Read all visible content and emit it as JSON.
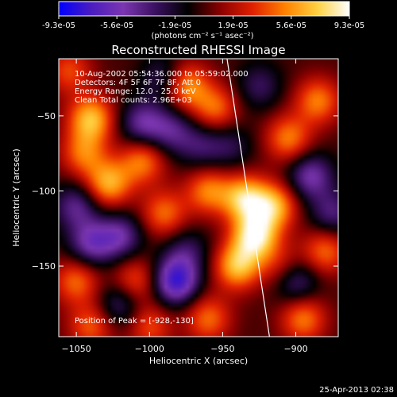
{
  "colorbar": {
    "tick_labels": [
      "-9.3e-05",
      "-5.6e-05",
      "-1.9e-05",
      "1.9e-05",
      "5.6e-05",
      "9.3e-05"
    ],
    "unit_label": "(photons cm⁻² s⁻¹ asec⁻²)",
    "colors": [
      "#0000ff",
      "#4a1cc0",
      "#7b36b0",
      "#3a1060",
      "#000000",
      "#8a0000",
      "#e02000",
      "#ff8000",
      "#ffd040",
      "#ffffff"
    ]
  },
  "chart_data": {
    "type": "heatmap",
    "title": "Reconstructed RHESSI Image",
    "xlabel": "Heliocentric X (arcsec)",
    "ylabel": "Heliocentric Y (arcsec)",
    "xlim": [
      -1062,
      -871
    ],
    "ylim": [
      -197,
      -12
    ],
    "x_ticks": [
      -1050,
      -1000,
      -950,
      -900
    ],
    "y_ticks": [
      -50,
      -100,
      -150
    ],
    "annotations": [
      "10-Aug-2002 05:54:36.000 to 05:59:02.000",
      "Detectors: 4F 5F 6F 7F 8F, Att 0",
      "Energy Range: 12.0 - 25.0 keV",
      "Clean     Total counts: 2.96E+03"
    ],
    "peak_label": "Position of Peak = [-928,-130]",
    "peak": [
      -928,
      -130
    ],
    "limb_line": [
      [
        -947,
        -12
      ],
      [
        -918,
        -197
      ]
    ],
    "blobs": [
      {
        "x": -1040,
        "y": -52,
        "v": 0.8
      },
      {
        "x": -1045,
        "y": -75,
        "v": 0.55
      },
      {
        "x": -1028,
        "y": -95,
        "v": 0.75
      },
      {
        "x": -1005,
        "y": -80,
        "v": 0.6
      },
      {
        "x": -975,
        "y": -30,
        "v": 0.7
      },
      {
        "x": -955,
        "y": -45,
        "v": 0.55
      },
      {
        "x": -990,
        "y": -115,
        "v": 0.55
      },
      {
        "x": -960,
        "y": -100,
        "v": 0.6
      },
      {
        "x": -935,
        "y": -105,
        "v": 0.85
      },
      {
        "x": -915,
        "y": -110,
        "v": 0.75
      },
      {
        "x": -928,
        "y": -130,
        "v": 1.0
      },
      {
        "x": -940,
        "y": -150,
        "v": 0.8
      },
      {
        "x": -905,
        "y": -65,
        "v": 0.6
      },
      {
        "x": -885,
        "y": -40,
        "v": 0.6
      },
      {
        "x": -880,
        "y": -140,
        "v": 0.55
      },
      {
        "x": -895,
        "y": -185,
        "v": 0.6
      },
      {
        "x": -1050,
        "y": -160,
        "v": 0.55
      },
      {
        "x": -1040,
        "y": -190,
        "v": 0.5
      },
      {
        "x": -1010,
        "y": -160,
        "v": 0.5
      },
      {
        "x": -1000,
        "y": -190,
        "v": 0.45
      },
      {
        "x": -960,
        "y": -185,
        "v": 0.55
      },
      {
        "x": -1055,
        "y": -20,
        "v": 0.45
      },
      {
        "x": -1050,
        "y": -110,
        "v": -0.5
      },
      {
        "x": -1005,
        "y": -55,
        "v": -0.55
      },
      {
        "x": -985,
        "y": -60,
        "v": -0.45
      },
      {
        "x": -1020,
        "y": -130,
        "v": -0.55
      },
      {
        "x": -982,
        "y": -160,
        "v": -0.9
      },
      {
        "x": -1040,
        "y": -135,
        "v": -0.6
      },
      {
        "x": -890,
        "y": -90,
        "v": -0.6
      },
      {
        "x": -900,
        "y": -160,
        "v": -0.5
      },
      {
        "x": -875,
        "y": -115,
        "v": -0.45
      },
      {
        "x": -990,
        "y": -25,
        "v": -0.4
      },
      {
        "x": -965,
        "y": -70,
        "v": -0.35
      },
      {
        "x": -945,
        "y": -70,
        "v": -0.3
      },
      {
        "x": -925,
        "y": -30,
        "v": -0.35
      },
      {
        "x": -975,
        "y": -140,
        "v": -0.35
      },
      {
        "x": -910,
        "y": -150,
        "v": 0.35
      },
      {
        "x": -1020,
        "y": -175,
        "v": -0.45
      }
    ]
  },
  "timestamp": "25-Apr-2013 02:38"
}
